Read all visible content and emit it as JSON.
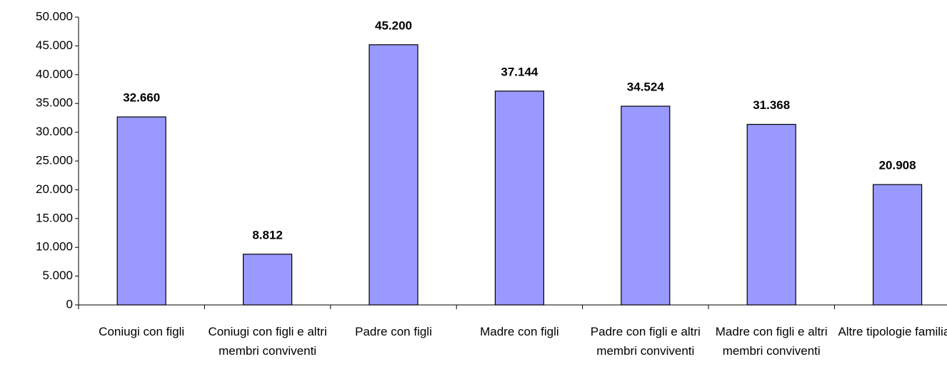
{
  "chart_data": {
    "type": "bar",
    "categories": [
      "Coniugi con figli",
      "Coniugi con figli e altri membri conviventi",
      "Padre con figli",
      "Madre con figli",
      "Padre con figli e altri membri conviventi",
      "Madre con figli e altri membri conviventi",
      "Altre tipologie familiari"
    ],
    "values": [
      32660,
      8812,
      45200,
      37144,
      34524,
      31368,
      20908
    ],
    "value_labels": [
      "32.660",
      "8.812",
      "45.200",
      "37.144",
      "34.524",
      "31.368",
      "20.908"
    ],
    "color": "#9999ff",
    "ylim": [
      0,
      50000
    ],
    "yticks": [
      0,
      {
        "value": 5000,
        "label": "5.000"
      },
      {
        "value": 10000,
        "label": "10.000"
      },
      {
        "value": 15000,
        "label": "15.000"
      },
      {
        "value": 20000,
        "label": "20.000"
      },
      {
        "value": 25000,
        "label": "25.000"
      },
      {
        "value": 30000,
        "label": "30.000"
      },
      {
        "value": 35000,
        "label": "35.000"
      },
      {
        "value": 40000,
        "label": "40.000"
      },
      {
        "value": 45000,
        "label": "45.000"
      },
      {
        "value": 50000,
        "label": "50.000"
      }
    ],
    "grid": false
  }
}
